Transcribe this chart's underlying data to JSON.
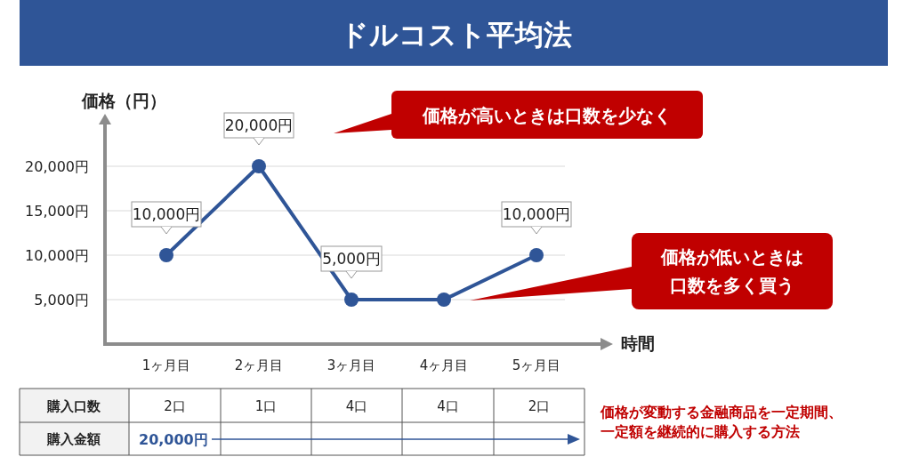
{
  "chart_data": {
    "type": "line",
    "title": "ドルコスト平均法",
    "xlabel": "時間",
    "ylabel": "価格（円）",
    "categories": [
      "1ヶ月目",
      "2ヶ月目",
      "3ヶ月目",
      "4ヶ月目",
      "5ヶ月目"
    ],
    "values": [
      10000,
      20000,
      5000,
      5000,
      10000
    ],
    "value_labels": [
      "10,000円",
      "20,000円",
      "5,000円",
      null,
      "10,000円"
    ],
    "color": "#2f5597",
    "marker": "circle",
    "line_style": "solid",
    "grid": "y",
    "ylim": [
      0,
      24700
    ],
    "yticks": [
      {
        "value": 5000,
        "label": "5,000円"
      },
      {
        "value": 10000,
        "label": "10,000円"
      },
      {
        "value": 15000,
        "label": "15,000円"
      },
      {
        "value": 20000,
        "label": "20,000円"
      }
    ],
    "annotations": [
      "価格が高いときは口数を少なく",
      "価格が低いときは",
      "口数を多く買う",
      "価格が変動する金融商品を一定期間、",
      "一定額を継続的に購入する方法",
      "購入口数",
      "2口",
      "1口",
      "4口",
      "4口",
      "2口",
      "購入金額",
      "20,000円"
    ]
  }
}
